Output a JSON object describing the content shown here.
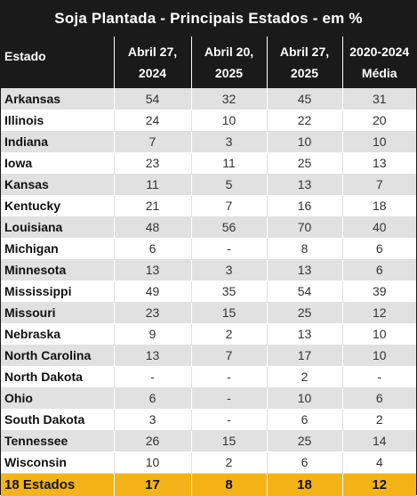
{
  "title": "Soja Plantada - Principais Estados - em %",
  "headers": {
    "state": "Estado",
    "col1_line1": "Abril 27,",
    "col1_line2": "2024",
    "col2_line1": "Abril 20,",
    "col2_line2": "2025",
    "col3_line1": "Abril 27,",
    "col3_line2": "2025",
    "col4_line1": "2020-2024",
    "col4_line2": "Média"
  },
  "rows": [
    {
      "state": "Arkansas",
      "v1": "54",
      "v2": "32",
      "v3": "45",
      "v4": "31"
    },
    {
      "state": "Illinois",
      "v1": "24",
      "v2": "10",
      "v3": "22",
      "v4": "20"
    },
    {
      "state": "Indiana",
      "v1": "7",
      "v2": "3",
      "v3": "10",
      "v4": "10"
    },
    {
      "state": "Iowa",
      "v1": "23",
      "v2": "11",
      "v3": "25",
      "v4": "13"
    },
    {
      "state": "Kansas",
      "v1": "11",
      "v2": "5",
      "v3": "13",
      "v4": "7"
    },
    {
      "state": "Kentucky",
      "v1": "21",
      "v2": "7",
      "v3": "16",
      "v4": "18"
    },
    {
      "state": "Louisiana",
      "v1": "48",
      "v2": "56",
      "v3": "70",
      "v4": "40"
    },
    {
      "state": "Michigan",
      "v1": "6",
      "v2": "-",
      "v3": "8",
      "v4": "6"
    },
    {
      "state": "Minnesota",
      "v1": "13",
      "v2": "3",
      "v3": "13",
      "v4": "6"
    },
    {
      "state": "Mississippi",
      "v1": "49",
      "v2": "35",
      "v3": "54",
      "v4": "39"
    },
    {
      "state": "Missouri",
      "v1": "23",
      "v2": "15",
      "v3": "25",
      "v4": "12"
    },
    {
      "state": "Nebraska",
      "v1": "9",
      "v2": "2",
      "v3": "13",
      "v4": "10"
    },
    {
      "state": "North Carolina",
      "v1": "13",
      "v2": "7",
      "v3": "17",
      "v4": "10"
    },
    {
      "state": "North Dakota",
      "v1": "-",
      "v2": "-",
      "v3": "2",
      "v4": "-"
    },
    {
      "state": "Ohio",
      "v1": "6",
      "v2": "-",
      "v3": "10",
      "v4": "6"
    },
    {
      "state": "South Dakota",
      "v1": "3",
      "v2": "-",
      "v3": "6",
      "v4": "2"
    },
    {
      "state": "Tennessee",
      "v1": "26",
      "v2": "15",
      "v3": "25",
      "v4": "14"
    },
    {
      "state": "Wisconsin",
      "v1": "10",
      "v2": "2",
      "v3": "6",
      "v4": "4"
    }
  ],
  "total": {
    "state": "18 Estados",
    "v1": "17",
    "v2": "8",
    "v3": "18",
    "v4": "12"
  },
  "colors": {
    "header_bg": "#1a1a1a",
    "stripe": "#e1e1e1",
    "total_bg": "#f4b316"
  }
}
